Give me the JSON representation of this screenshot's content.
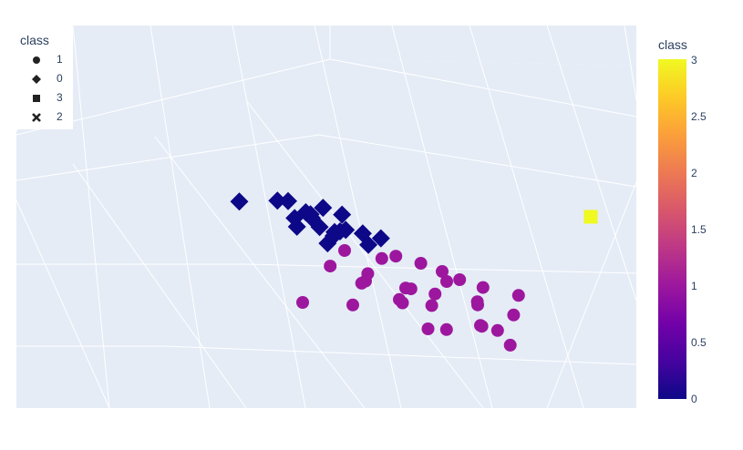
{
  "chart_data": {
    "type": "scatter",
    "subtype": "3d-scatter",
    "legend": {
      "title": "class",
      "position": "top-left",
      "items": [
        {
          "label": "1",
          "symbol": "circle"
        },
        {
          "label": "0",
          "symbol": "diamond"
        },
        {
          "label": "3",
          "symbol": "square"
        },
        {
          "label": "2",
          "symbol": "x"
        }
      ]
    },
    "colorbar": {
      "title": "class",
      "range": [
        0,
        3
      ],
      "ticks": [
        "3",
        "2.5",
        "2",
        "1.5",
        "1",
        "0.5",
        "0"
      ],
      "colorscale": "plasma"
    },
    "grid": true,
    "series": [
      {
        "name": "1",
        "symbol": "circle",
        "color": "#9c179e",
        "points": [
          [
            0.46,
            0.28,
            0.3
          ],
          [
            0.43,
            0.4,
            0.2
          ],
          [
            0.42,
            0.18,
            0.25
          ],
          [
            0.3,
            0.58,
            0.1
          ],
          [
            0.27,
            0.42,
            0.2
          ],
          [
            0.47,
            0.48,
            0.25
          ],
          [
            0.2,
            0.6,
            0.04
          ],
          [
            0.64,
            0.3,
            0.18
          ],
          [
            0.4,
            0.62,
            0.3
          ],
          [
            0.3,
            0.4,
            0.3
          ],
          [
            0.35,
            0.3,
            0.12
          ],
          [
            0.55,
            0.58,
            0.2
          ],
          [
            0.5,
            0.4,
            0.3
          ],
          [
            0.55,
            0.52,
            0.28
          ],
          [
            0.63,
            0.52,
            0.4
          ],
          [
            0.56,
            0.4,
            0.24
          ],
          [
            0.45,
            0.55,
            0.08
          ],
          [
            0.58,
            0.62,
            0.22
          ],
          [
            0.4,
            0.48,
            0.16
          ],
          [
            0.4,
            0.55,
            0.18
          ],
          [
            0.52,
            0.46,
            0.36
          ],
          [
            0.38,
            0.32,
            0.28
          ],
          [
            0.48,
            0.62,
            0.14
          ],
          [
            0.56,
            0.5,
            0.16
          ],
          [
            0.62,
            0.45,
            0.08
          ],
          [
            0.32,
            0.55,
            0.22
          ],
          [
            0.5,
            0.3,
            0.3
          ],
          [
            0.34,
            0.46,
            0.24
          ],
          [
            0.58,
            0.3,
            0.28
          ],
          [
            0.46,
            0.52,
            0.2
          ]
        ]
      },
      {
        "name": "0",
        "symbol": "diamond",
        "color": "#0d0887",
        "points": [
          [
            0.1,
            0.33,
            0.36
          ],
          [
            0.22,
            0.25,
            0.28
          ],
          [
            0.28,
            0.25,
            0.24
          ],
          [
            0.26,
            0.1,
            0.3
          ],
          [
            0.29,
            0.27,
            0.3
          ],
          [
            0.24,
            0.35,
            0.4
          ],
          [
            0.3,
            0.3,
            0.35
          ],
          [
            0.32,
            0.2,
            0.32
          ],
          [
            0.2,
            0.28,
            0.42
          ],
          [
            0.18,
            0.27,
            0.4
          ],
          [
            0.34,
            0.35,
            0.4
          ],
          [
            0.28,
            0.15,
            0.38
          ],
          [
            0.36,
            0.25,
            0.3
          ],
          [
            0.22,
            0.2,
            0.3
          ],
          [
            0.26,
            0.3,
            0.34
          ],
          [
            0.38,
            0.3,
            0.38
          ],
          [
            0.32,
            0.12,
            0.36
          ],
          [
            0.24,
            0.22,
            0.36
          ],
          [
            0.3,
            0.18,
            0.28
          ]
        ]
      },
      {
        "name": "3",
        "symbol": "square",
        "color": "#f0f921",
        "points": [
          [
            0.8,
            0.2,
            0.8
          ]
        ]
      },
      {
        "name": "2",
        "symbol": "x",
        "color": "#ed7953",
        "points": []
      }
    ]
  }
}
